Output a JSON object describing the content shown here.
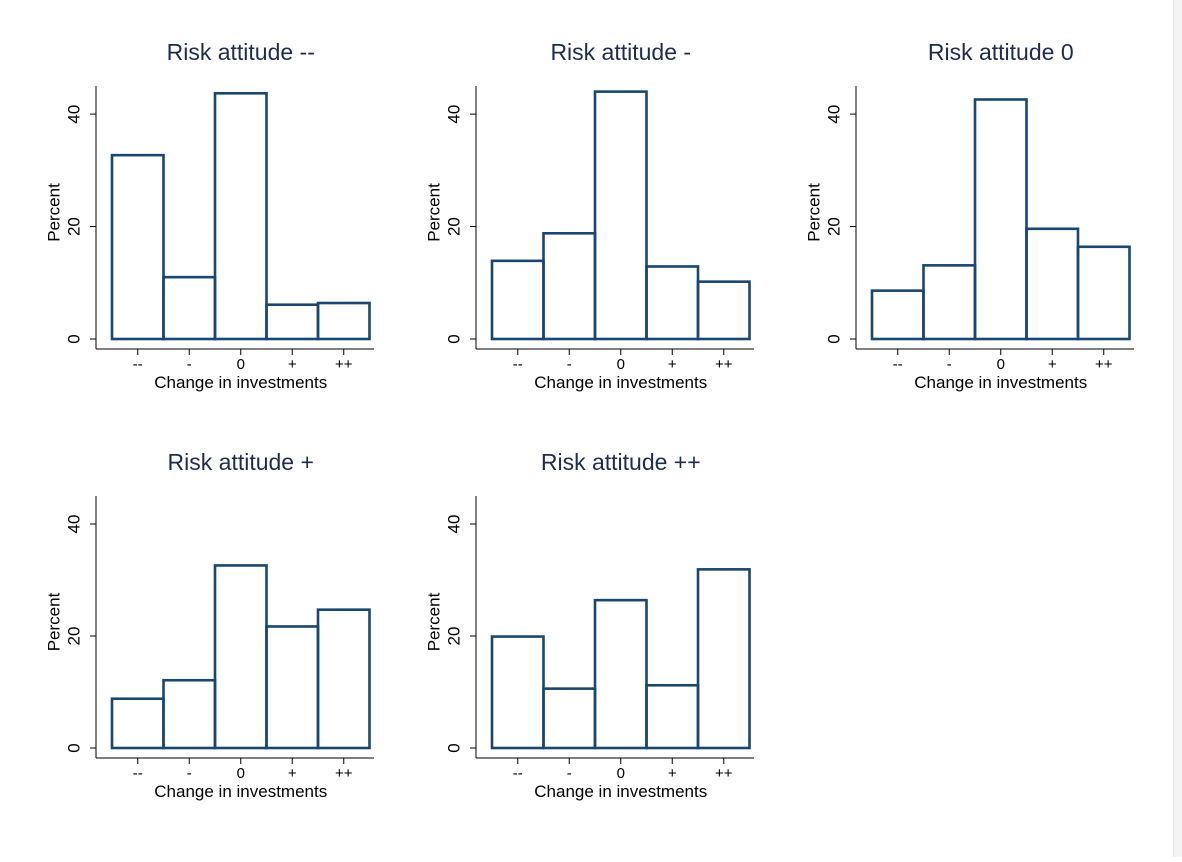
{
  "colors": {
    "bar_outline": "#1a476f",
    "title": "#1e2d4f",
    "text": "#000000",
    "axis": "#000000",
    "background": "#ffffff"
  },
  "chart_data": [
    {
      "type": "bar",
      "title": "Risk attitude --",
      "xlabel": "Change in investments",
      "ylabel": "Percent",
      "categories": [
        "--",
        "-",
        "0",
        "+",
        "++"
      ],
      "values": [
        32.7,
        11.0,
        43.7,
        6.1,
        6.4
      ],
      "ylim": [
        0,
        45
      ],
      "yticks": [
        0,
        20,
        40
      ],
      "grid": false
    },
    {
      "type": "bar",
      "title": "Risk attitude -",
      "xlabel": "Change in investments",
      "ylabel": "Percent",
      "categories": [
        "--",
        "-",
        "0",
        "+",
        "++"
      ],
      "values": [
        13.9,
        18.8,
        44.0,
        12.9,
        10.2
      ],
      "ylim": [
        0,
        45
      ],
      "yticks": [
        0,
        20,
        40
      ],
      "grid": false
    },
    {
      "type": "bar",
      "title": "Risk attitude 0",
      "xlabel": "Change in investments",
      "ylabel": "Percent",
      "categories": [
        "--",
        "-",
        "0",
        "+",
        "++"
      ],
      "values": [
        8.6,
        13.1,
        42.6,
        19.6,
        16.4
      ],
      "ylim": [
        0,
        45
      ],
      "yticks": [
        0,
        20,
        40
      ],
      "grid": false
    },
    {
      "type": "bar",
      "title": "Risk attitude +",
      "xlabel": "Change in investments",
      "ylabel": "Percent",
      "categories": [
        "--",
        "-",
        "0",
        "+",
        "++"
      ],
      "values": [
        8.8,
        12.1,
        32.6,
        21.7,
        24.7
      ],
      "ylim": [
        0,
        45
      ],
      "yticks": [
        0,
        20,
        40
      ],
      "grid": false
    },
    {
      "type": "bar",
      "title": "Risk attitude ++",
      "xlabel": "Change in investments",
      "ylabel": "Percent",
      "categories": [
        "--",
        "-",
        "0",
        "+",
        "++"
      ],
      "values": [
        19.9,
        10.6,
        26.4,
        11.2,
        31.9
      ],
      "ylim": [
        0,
        45
      ],
      "yticks": [
        0,
        20,
        40
      ],
      "grid": false
    }
  ]
}
